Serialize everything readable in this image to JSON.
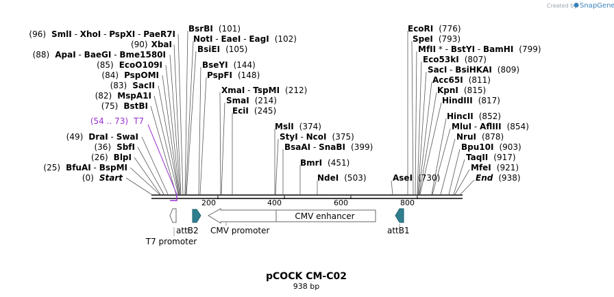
{
  "credit": {
    "prefix": "Created by",
    "brand": "SnapGene"
  },
  "title": "pCOCK CM-C02",
  "length_text": "938 bp",
  "colors": {
    "primer": "#9a2fd0",
    "attb": "#2f7f8f",
    "line": "#000000"
  },
  "ruler_ticks": [
    "200",
    "400",
    "600",
    "800"
  ],
  "left_sites": [
    {
      "parts": [
        "(96)",
        "SmlI",
        " - ",
        "XhoI",
        " - ",
        "PspXI",
        " - ",
        "PaeR7I"
      ]
    },
    {
      "parts": [
        "(90)",
        "XbaI"
      ]
    },
    {
      "parts": [
        "(88)",
        "ApaI",
        " - ",
        "BaeGI",
        " - ",
        "Bme1580I"
      ]
    },
    {
      "parts": [
        "(85)",
        "EcoO109I"
      ]
    },
    {
      "parts": [
        "(84)",
        "PspOMI"
      ]
    },
    {
      "parts": [
        "(83)",
        "SacII"
      ]
    },
    {
      "parts": [
        "(82)",
        "MspA1I"
      ]
    },
    {
      "parts": [
        "(75)",
        "BstBI"
      ]
    },
    {
      "parts": [
        "(49)",
        "DraI",
        " - ",
        "SwaI"
      ]
    },
    {
      "parts": [
        "(36)",
        "SbfI"
      ]
    },
    {
      "parts": [
        "(26)",
        "BlpI"
      ]
    },
    {
      "parts": [
        "(25)",
        "BfuAI",
        " - ",
        "BspMI"
      ]
    },
    {
      "parts": [
        "(0)",
        "Start"
      ]
    }
  ],
  "primer": {
    "range": "(54 .. 73)",
    "name": "T7"
  },
  "mid_sites": [
    {
      "parts": [
        "BsrBI",
        "(101)"
      ]
    },
    {
      "parts": [
        "NotI",
        " - ",
        "EaeI",
        " - ",
        "EagI",
        "(102)"
      ]
    },
    {
      "parts": [
        "BsiEI",
        "(105)"
      ]
    },
    {
      "parts": [
        "BseYI",
        "(144)"
      ]
    },
    {
      "parts": [
        "PspFI",
        "(148)"
      ]
    },
    {
      "parts": [
        "XmaI",
        " - ",
        "TspMI",
        "(212)"
      ]
    },
    {
      "parts": [
        "SmaI",
        "(214)"
      ]
    },
    {
      "parts": [
        "EciI",
        "(245)"
      ]
    },
    {
      "parts": [
        "MslI",
        "(374)"
      ]
    },
    {
      "parts": [
        "StyI",
        " - ",
        "NcoI",
        "(375)"
      ]
    },
    {
      "parts": [
        "BsaAI",
        " - ",
        "SnaBI",
        "(399)"
      ]
    },
    {
      "parts": [
        "BmrI",
        "(451)"
      ]
    },
    {
      "parts": [
        "NdeI",
        "(503)"
      ]
    }
  ],
  "right_sites": [
    {
      "parts": [
        "EcoRI",
        "(776)"
      ]
    },
    {
      "parts": [
        "SpeI",
        "(793)"
      ]
    },
    {
      "parts": [
        "MfII",
        " * - ",
        "BstYI",
        " - ",
        "BamHI",
        "(799)"
      ]
    },
    {
      "parts": [
        "Eco53kI",
        "(807)"
      ]
    },
    {
      "parts": [
        "SacI",
        " - ",
        "BsiHKAI",
        "(809)"
      ]
    },
    {
      "parts": [
        "Acc65I",
        "(811)"
      ]
    },
    {
      "parts": [
        "KpnI",
        "(815)"
      ]
    },
    {
      "parts": [
        "HindIII",
        "(817)"
      ]
    },
    {
      "parts": [
        "HincII",
        "(852)"
      ]
    },
    {
      "parts": [
        "MluI",
        " - ",
        "AflIII",
        "(854)"
      ]
    },
    {
      "parts": [
        "NruI",
        "(878)"
      ]
    },
    {
      "parts": [
        "Bpu10I",
        "(903)"
      ]
    },
    {
      "parts": [
        "TaqII",
        "(917)"
      ]
    },
    {
      "parts": [
        "MfeI",
        "(921)"
      ]
    },
    {
      "parts": [
        "End",
        "(938)"
      ]
    },
    {
      "parts": [
        "AseI",
        "(730)"
      ]
    }
  ],
  "features": {
    "t7_promoter": "T7 promoter",
    "attb2": "attB2",
    "cmv_promoter": "CMV promoter",
    "cmv_enhancer": "CMV enhancer",
    "attb1": "attB1"
  }
}
